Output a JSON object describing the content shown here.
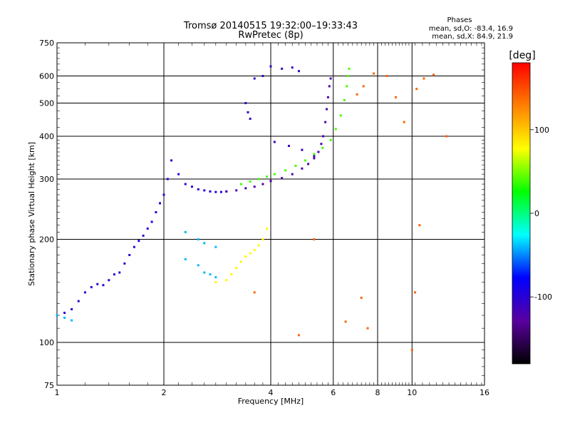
{
  "chart_data": {
    "type": "scatter",
    "title": "Tromsø 20140515 19:32:00–19:33:43",
    "subtitle": "RwPretec (8p)",
    "xlabel": "Frequency [MHz]",
    "ylabel": "Stationary phase Virtual Height [km]",
    "x_scale": "log",
    "y_scale": "log",
    "xlim": [
      1,
      16
    ],
    "ylim": [
      75,
      750
    ],
    "x_ticks": [
      "1",
      "2",
      "4",
      "6",
      "8",
      "10",
      "16"
    ],
    "x_gridlines": [
      2,
      4,
      6,
      8,
      10
    ],
    "y_ticks": [
      "75",
      "100",
      "200",
      "300",
      "400",
      "500",
      "600",
      "750"
    ],
    "y_gridlines": [
      100,
      200,
      300,
      400,
      500,
      600
    ],
    "grid": true,
    "stats": {
      "heading": "Phases",
      "line_o": "mean, sd,O:  -83.4,  16.9",
      "line_x": "mean, sd,X:  84.9,  21.9"
    },
    "colorbar": {
      "label": "[deg]",
      "tick_labels": [
        "100",
        "0",
        "-100"
      ],
      "tick_values": [
        100,
        0,
        -100
      ],
      "range": [
        -180,
        180
      ],
      "colormap": "rainbow",
      "colors": [
        "#000000",
        "#5a00a0",
        "#0000ff",
        "#00ffff",
        "#00ff00",
        "#ffff00",
        "#ff8000",
        "#ff0000"
      ]
    },
    "series": [
      {
        "trace": "lower-diffuse-cloud",
        "phase_deg": -100,
        "points": [
          [
            1.05,
            122
          ],
          [
            1.1,
            125
          ],
          [
            1.15,
            132
          ],
          [
            1.2,
            140
          ],
          [
            1.25,
            145
          ],
          [
            1.3,
            148
          ],
          [
            1.35,
            147
          ],
          [
            1.4,
            152
          ],
          [
            1.45,
            158
          ],
          [
            1.5,
            160
          ],
          [
            1.55,
            170
          ],
          [
            1.6,
            180
          ],
          [
            1.65,
            190
          ],
          [
            1.7,
            198
          ],
          [
            1.75,
            205
          ],
          [
            1.8,
            215
          ],
          [
            1.85,
            225
          ],
          [
            1.9,
            240
          ],
          [
            1.95,
            255
          ],
          [
            2.0,
            270
          ],
          [
            2.05,
            300
          ],
          [
            2.1,
            340
          ],
          [
            2.2,
            310
          ],
          [
            2.3,
            290
          ],
          [
            2.4,
            285
          ],
          [
            2.5,
            280
          ],
          [
            2.6,
            278
          ],
          [
            2.7,
            276
          ],
          [
            2.8,
            275
          ],
          [
            2.9,
            275
          ],
          [
            3.0,
            276
          ]
        ]
      },
      {
        "trace": "f-layer-cusp",
        "phase_deg": -120,
        "points": [
          [
            3.0,
            276
          ],
          [
            3.2,
            278
          ],
          [
            3.4,
            282
          ],
          [
            3.6,
            285
          ],
          [
            3.8,
            290
          ],
          [
            4.0,
            296
          ],
          [
            4.3,
            302
          ],
          [
            4.6,
            310
          ],
          [
            4.9,
            322
          ],
          [
            5.1,
            332
          ],
          [
            5.3,
            345
          ],
          [
            5.45,
            360
          ],
          [
            5.55,
            380
          ],
          [
            5.62,
            400
          ],
          [
            5.7,
            440
          ],
          [
            5.75,
            480
          ],
          [
            5.8,
            520
          ],
          [
            5.85,
            560
          ],
          [
            5.9,
            590
          ]
        ]
      },
      {
        "trace": "x-trace-mid",
        "phase_deg": 40,
        "points": [
          [
            3.3,
            290
          ],
          [
            3.5,
            295
          ],
          [
            3.7,
            300
          ],
          [
            3.9,
            305
          ],
          [
            4.1,
            310
          ],
          [
            4.4,
            318
          ],
          [
            4.7,
            328
          ],
          [
            5.0,
            340
          ],
          [
            5.3,
            355
          ],
          [
            5.6,
            370
          ],
          [
            5.9,
            390
          ],
          [
            6.1,
            420
          ],
          [
            6.3,
            460
          ],
          [
            6.45,
            510
          ],
          [
            6.55,
            560
          ],
          [
            6.6,
            600
          ],
          [
            6.65,
            630
          ]
        ]
      },
      {
        "trace": "x-trace-low",
        "phase_deg": 80,
        "points": [
          [
            2.8,
            150
          ],
          [
            3.0,
            152
          ],
          [
            3.1,
            158
          ],
          [
            3.2,
            165
          ],
          [
            3.3,
            172
          ],
          [
            3.4,
            178
          ],
          [
            3.5,
            182
          ],
          [
            3.6,
            186
          ],
          [
            3.7,
            192
          ],
          [
            3.8,
            200
          ],
          [
            3.9,
            215
          ]
        ]
      },
      {
        "trace": "lower-cyan-cloud",
        "phase_deg": -40,
        "points": [
          [
            1.0,
            120
          ],
          [
            1.05,
            118
          ],
          [
            1.1,
            116
          ],
          [
            2.3,
            175
          ],
          [
            2.5,
            168
          ],
          [
            2.6,
            160
          ],
          [
            2.7,
            158
          ],
          [
            2.8,
            155
          ],
          [
            2.3,
            210
          ],
          [
            2.5,
            200
          ],
          [
            2.6,
            195
          ],
          [
            2.8,
            190
          ]
        ]
      },
      {
        "trace": "upper-echoes",
        "phase_deg": -110,
        "points": [
          [
            3.4,
            500
          ],
          [
            3.45,
            470
          ],
          [
            3.5,
            450
          ],
          [
            3.6,
            590
          ],
          [
            3.8,
            600
          ],
          [
            4.0,
            640
          ],
          [
            4.3,
            630
          ],
          [
            4.6,
            635
          ],
          [
            4.8,
            620
          ],
          [
            4.1,
            385
          ],
          [
            4.5,
            375
          ],
          [
            4.9,
            365
          ],
          [
            5.3,
            350
          ]
        ]
      },
      {
        "trace": "scattered-noise",
        "phase_deg": 140,
        "points": [
          [
            7.0,
            530
          ],
          [
            7.3,
            560
          ],
          [
            7.8,
            610
          ],
          [
            8.5,
            600
          ],
          [
            9.0,
            520
          ],
          [
            9.5,
            440
          ],
          [
            10.3,
            550
          ],
          [
            10.8,
            590
          ],
          [
            11.5,
            605
          ],
          [
            12.5,
            400
          ],
          [
            7.5,
            110
          ],
          [
            10.0,
            95
          ],
          [
            10.2,
            140
          ],
          [
            10.5,
            220
          ],
          [
            4.8,
            105
          ],
          [
            5.3,
            200
          ],
          [
            6.5,
            115
          ],
          [
            7.2,
            135
          ],
          [
            3.6,
            140
          ]
        ]
      }
    ]
  }
}
